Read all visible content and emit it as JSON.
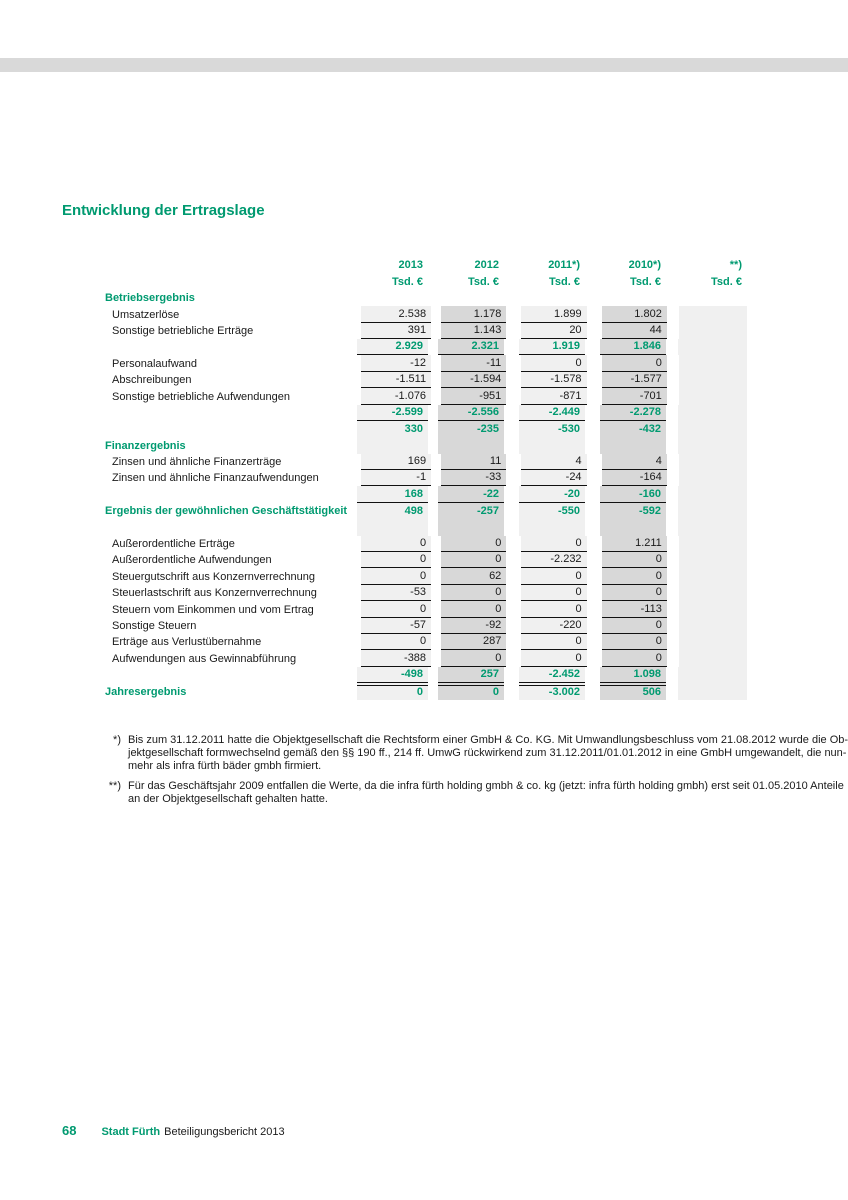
{
  "page": {
    "title": "Entwicklung der Ertragslage",
    "footer": {
      "page_number": "68",
      "brand": "Stadt Fürth",
      "report_name": "Beteiligungsbericht 2013"
    }
  },
  "colors": {
    "accent_green": "#009a70",
    "bar_gray": "#d9d9d9",
    "column_light": "#f0f0f0",
    "column_dark": "#d8d8d8"
  },
  "table": {
    "header": {
      "years": [
        "2013",
        "2012",
        "2011*)",
        "2010*)",
        "**)"
      ],
      "units": [
        "Tsd. €",
        "Tsd. €",
        "Tsd. €",
        "Tsd. €",
        "Tsd. €"
      ]
    },
    "rows": [
      {
        "label": "Betriebsergebnis",
        "type": "section",
        "bg": false,
        "line": false,
        "green_values": false,
        "values": [
          "",
          "",
          "",
          ""
        ]
      },
      {
        "label": "Umsatzerlöse",
        "type": "item",
        "bg": true,
        "line": true,
        "green_values": false,
        "values": [
          "2.538",
          "1.178",
          "1.899",
          "1.802"
        ]
      },
      {
        "label": "Sonstige betriebliche Erträge",
        "type": "item",
        "bg": true,
        "line": true,
        "green_values": false,
        "values": [
          "391",
          "1.143",
          "20",
          "44"
        ]
      },
      {
        "label": "",
        "type": "subtotal",
        "bg": true,
        "line": true,
        "green_values": true,
        "values": [
          "2.929",
          "2.321",
          "1.919",
          "1.846"
        ]
      },
      {
        "label": "Personalaufwand",
        "type": "item",
        "bg": true,
        "line": true,
        "green_values": false,
        "values": [
          "-12",
          "-11",
          "0",
          "0"
        ]
      },
      {
        "label": "Abschreibungen",
        "type": "item",
        "bg": true,
        "line": true,
        "green_values": false,
        "values": [
          "-1.511",
          "-1.594",
          "-1.578",
          "-1.577"
        ]
      },
      {
        "label": "Sonstige betriebliche Aufwendungen",
        "type": "item",
        "bg": true,
        "line": true,
        "green_values": false,
        "values": [
          "-1.076",
          "-951",
          "-871",
          "-701"
        ]
      },
      {
        "label": "",
        "type": "subtotal",
        "bg": true,
        "line": true,
        "green_values": true,
        "values": [
          "-2.599",
          "-2.556",
          "-2.449",
          "-2.278"
        ]
      },
      {
        "label": "",
        "type": "subtotal",
        "bg": true,
        "line": false,
        "green_values": true,
        "values": [
          "330",
          "-235",
          "-530",
          "-432"
        ]
      },
      {
        "label": "Finanzergebnis",
        "type": "section",
        "bg": true,
        "line": false,
        "green_values": false,
        "values": [
          "",
          "",
          "",
          ""
        ]
      },
      {
        "label": "Zinsen und ähnliche Finanzerträge",
        "type": "item",
        "bg": true,
        "line": true,
        "green_values": false,
        "values": [
          "169",
          "11",
          "4",
          "4"
        ]
      },
      {
        "label": "Zinsen und ähnliche Finanzaufwendungen",
        "type": "item",
        "bg": true,
        "line": true,
        "green_values": false,
        "values": [
          "-1",
          "-33",
          "-24",
          "-164"
        ]
      },
      {
        "label": "",
        "type": "subtotal",
        "bg": true,
        "line": true,
        "green_values": true,
        "values": [
          "168",
          "-22",
          "-20",
          "-160"
        ]
      },
      {
        "label": "Ergebnis der gewöhnlichen Geschäftstätigkeit",
        "type": "total",
        "bg": true,
        "line": false,
        "green_values": true,
        "values": [
          "498",
          "-257",
          "-550",
          "-592"
        ]
      },
      {
        "label": "",
        "type": "blank",
        "bg": true,
        "line": false,
        "green_values": false,
        "values": [
          "",
          "",
          "",
          ""
        ]
      },
      {
        "label": "Außerordentliche Erträge",
        "type": "item",
        "bg": true,
        "line": true,
        "green_values": false,
        "values": [
          "0",
          "0",
          "0",
          "1.211"
        ]
      },
      {
        "label": "Außerordentliche Aufwendungen",
        "type": "item",
        "bg": true,
        "line": true,
        "green_values": false,
        "values": [
          "0",
          "0",
          "-2.232",
          "0"
        ]
      },
      {
        "label": "Steuergutschrift aus Konzernverrechnung",
        "type": "item",
        "bg": true,
        "line": true,
        "green_values": false,
        "values": [
          "0",
          "62",
          "0",
          "0"
        ]
      },
      {
        "label": "Steuerlastschrift aus Konzernverrechnung",
        "type": "item",
        "bg": true,
        "line": true,
        "green_values": false,
        "values": [
          "-53",
          "0",
          "0",
          "0"
        ]
      },
      {
        "label": "Steuern vom Einkommen und vom Ertrag",
        "type": "item",
        "bg": true,
        "line": true,
        "green_values": false,
        "values": [
          "0",
          "0",
          "0",
          "-113"
        ]
      },
      {
        "label": "Sonstige Steuern",
        "type": "item",
        "bg": true,
        "line": true,
        "green_values": false,
        "values": [
          "-57",
          "-92",
          "-220",
          "0"
        ]
      },
      {
        "label": "Erträge aus Verlustübernahme",
        "type": "item",
        "bg": true,
        "line": true,
        "green_values": false,
        "values": [
          "0",
          "287",
          "0",
          "0"
        ]
      },
      {
        "label": "Aufwendungen aus Gewinnabführung",
        "type": "item",
        "bg": true,
        "line": true,
        "green_values": false,
        "values": [
          "-388",
          "0",
          "0",
          "0"
        ]
      },
      {
        "label": "",
        "type": "subtotal",
        "bg": true,
        "line": true,
        "double_line": true,
        "green_values": true,
        "values": [
          "-498",
          "257",
          "-2.452",
          "1.098"
        ]
      },
      {
        "label": "Jahresergebnis",
        "type": "total",
        "bg": true,
        "line": false,
        "green_values": true,
        "values": [
          "0",
          "0",
          "-3.002",
          "506"
        ]
      }
    ]
  },
  "footnotes": [
    {
      "marker": "*)",
      "lines": [
        "Bis zum 31.12.2011 hatte die Objektgesellschaft die Rechtsform einer GmbH & Co. KG. Mit Umwandlungsbeschluss vom 21.08.2012 wurde die Ob-",
        "jektgesellschaft formwechselnd gemäß den §§ 190 ff., 214 ff. UmwG rückwirkend zum 31.12.2011/01.01.2012 in eine GmbH umgewandelt, die nun-",
        "mehr als infra fürth bäder gmbh firmiert."
      ]
    },
    {
      "marker": "**)",
      "lines": [
        "Für das Geschäftsjahr 2009 entfallen die Werte, da die infra fürth holding gmbh & co. kg (jetzt: infra fürth holding gmbh) erst seit 01.05.2010 Anteile",
        "an der Objektgesellschaft gehalten hatte."
      ]
    }
  ]
}
